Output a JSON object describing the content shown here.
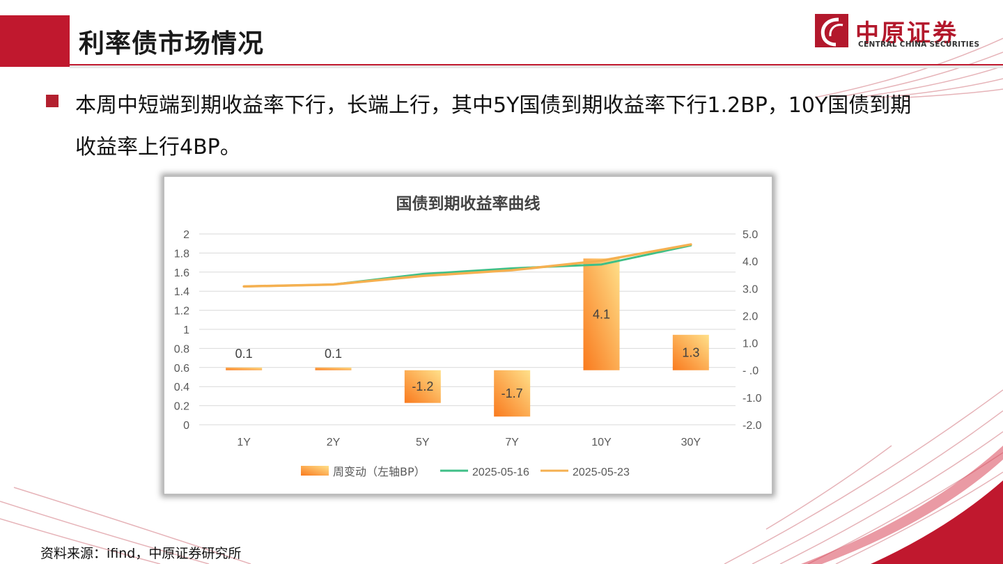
{
  "header": {
    "title": "利率债市场情况"
  },
  "logo": {
    "cn": "中原证券",
    "en": "CENTRAL CHINA SECURITIES"
  },
  "bullet": {
    "text": "本周中短端到期收益率下行，长端上行，其中5Y国债到期收益率下行1.2BP，10Y国债到期收益率上行4BP。"
  },
  "footer": {
    "source": "资料来源：ifind，中原证券研究所"
  },
  "colors": {
    "brand_red": "#c0182e",
    "series_0516": "#3fbf87",
    "series_0523": "#f5b050",
    "bar_dark": "#f97a1e",
    "bar_light": "#ffe08a"
  },
  "chart_data": {
    "type": "bar",
    "title": "国债到期收益率曲线",
    "categories": [
      "1Y",
      "2Y",
      "5Y",
      "7Y",
      "10Y",
      "30Y"
    ],
    "bar_series": {
      "name": "周变动（左轴BP）",
      "axis": "right",
      "values": [
        0.1,
        0.1,
        -1.2,
        -1.7,
        4.1,
        1.3
      ],
      "labels": [
        "0.1",
        "0.1",
        "-1.2",
        "-1.7",
        "4.1",
        "1.3"
      ]
    },
    "line_series": [
      {
        "name": "2025-05-16",
        "axis": "left",
        "values": [
          1.45,
          1.47,
          1.58,
          1.64,
          1.68,
          1.88
        ]
      },
      {
        "name": "2025-05-23",
        "axis": "left",
        "values": [
          1.45,
          1.47,
          1.56,
          1.62,
          1.72,
          1.89
        ]
      }
    ],
    "left_axis": {
      "ylim": [
        0,
        2
      ],
      "ticks": [
        "0",
        "0.2",
        "0.4",
        "0.6",
        "0.8",
        "1",
        "1.2",
        "1.4",
        "1.6",
        "1.8",
        "2"
      ]
    },
    "right_axis": {
      "ylim": [
        -2,
        5
      ],
      "ticks": [
        "-2.0",
        "-1.0",
        "-  .0",
        "1.0",
        "2.0",
        "3.0",
        "4.0",
        "5.0"
      ]
    },
    "grid": true,
    "legend": "bottom"
  }
}
